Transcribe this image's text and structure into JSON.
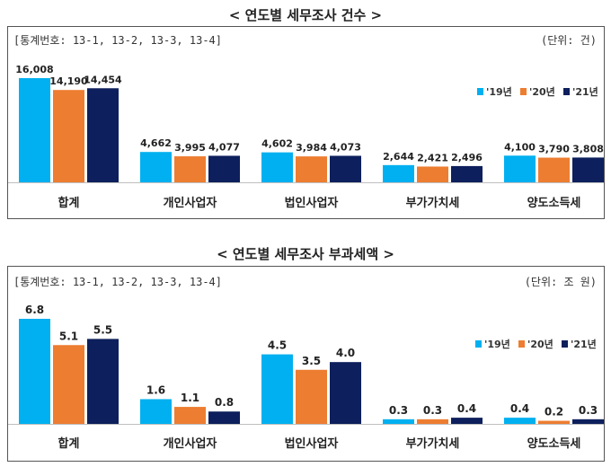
{
  "chart_data": [
    {
      "type": "bar",
      "title": "< 연도별 세무조사 건수 >",
      "source_note": "[통계번호: 13-1, 13-2, 13-3, 13-4]",
      "unit_note": "(단위: 건)",
      "categories": [
        "합계",
        "개인사업자",
        "법인사업자",
        "부가가치세",
        "양도소득세"
      ],
      "series": [
        {
          "name": "'19년",
          "color": "#00B0F0",
          "values": [
            16008,
            4662,
            4602,
            2644,
            4100
          ],
          "labels": [
            "16,008",
            "4,662",
            "4,602",
            "2,644",
            "4,100"
          ]
        },
        {
          "name": "'20년",
          "color": "#ED7D31",
          "values": [
            14190,
            3995,
            3984,
            2421,
            3790
          ],
          "labels": [
            "14,190",
            "3,995",
            "3,984",
            "2,421",
            "3,790"
          ]
        },
        {
          "name": "'21년",
          "color": "#0D1F5C",
          "values": [
            14454,
            4077,
            4073,
            2496,
            3808
          ],
          "labels": [
            "14,454",
            "4,077",
            "4,073",
            "2,496",
            "3,808"
          ]
        }
      ],
      "legend_position": "top-right",
      "ylim": [
        0,
        16008
      ]
    },
    {
      "type": "bar",
      "title": "< 연도별 세무조사 부과세액 >",
      "source_note": "[통계번호: 13-1, 13-2, 13-3, 13-4]",
      "unit_note": "(단위: 조 원)",
      "categories": [
        "합계",
        "개인사업자",
        "법인사업자",
        "부가가치세",
        "양도소득세"
      ],
      "series": [
        {
          "name": "'19년",
          "color": "#00B0F0",
          "values": [
            6.8,
            1.6,
            4.5,
            0.3,
            0.4
          ],
          "labels": [
            "6.8",
            "1.6",
            "4.5",
            "0.3",
            "0.4"
          ]
        },
        {
          "name": "'20년",
          "color": "#ED7D31",
          "values": [
            5.1,
            1.1,
            3.5,
            0.3,
            0.2
          ],
          "labels": [
            "5.1",
            "1.1",
            "3.5",
            "0.3",
            "0.2"
          ]
        },
        {
          "name": "'21년",
          "color": "#0D1F5C",
          "values": [
            5.5,
            0.8,
            4.0,
            0.4,
            0.3
          ],
          "labels": [
            "5.5",
            "0.8",
            "4.0",
            "0.4",
            "0.3"
          ]
        }
      ],
      "legend_position": "right",
      "ylim": [
        0,
        6.8
      ]
    }
  ]
}
